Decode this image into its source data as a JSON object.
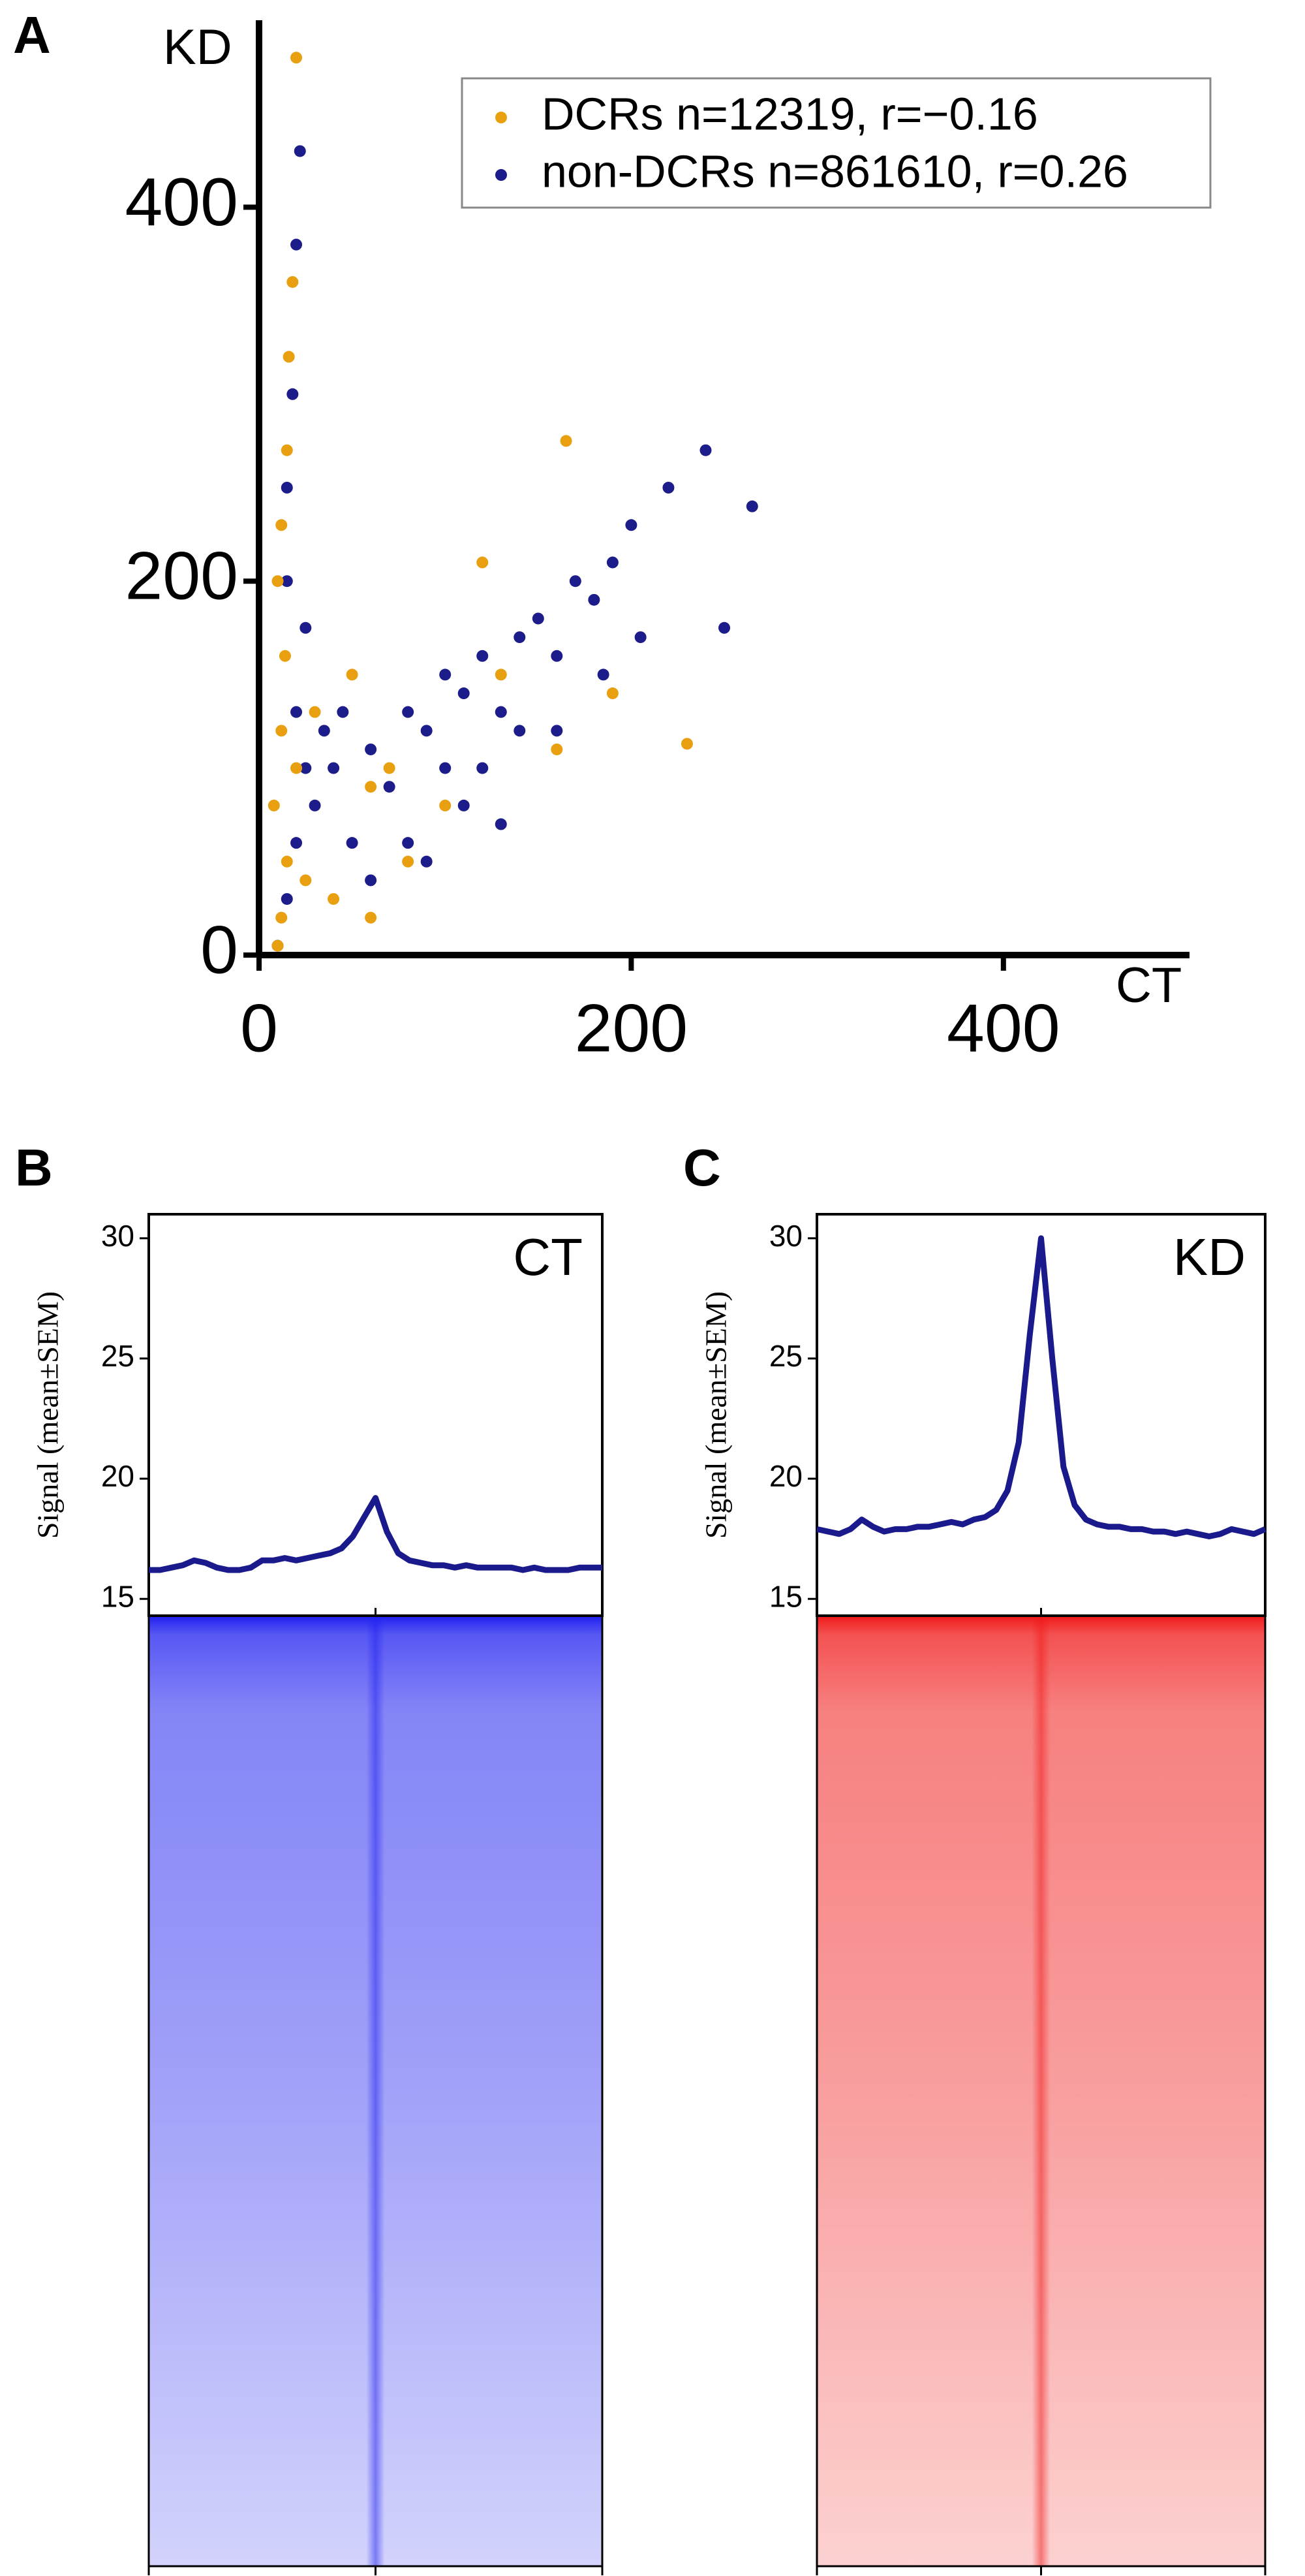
{
  "chart_data": [
    {
      "type": "scatter",
      "panel_label": "A",
      "x_label": "CT",
      "y_label": "KD",
      "xlim": [
        0,
        500
      ],
      "ylim": [
        0,
        500
      ],
      "xticks": [
        0,
        200,
        400
      ],
      "yticks": [
        0,
        200,
        400
      ],
      "legend": "upper right",
      "series": [
        {
          "name": "DCRs n=12319, r=−0.16",
          "color": "#e8a010",
          "x": [
            10,
            12,
            15,
            8,
            12,
            14,
            10,
            12,
            15,
            16,
            18,
            20,
            20,
            25,
            40,
            60,
            80,
            100,
            60,
            130,
            165,
            230,
            190,
            160,
            120,
            30,
            50,
            70
          ],
          "values": [
            5,
            20,
            50,
            80,
            120,
            160,
            200,
            230,
            270,
            320,
            360,
            480,
            100,
            40,
            30,
            20,
            50,
            80,
            90,
            150,
            275,
            113,
            140,
            110,
            210,
            130,
            150,
            100
          ]
        },
        {
          "name": "non-DCRs n=861610, r=0.26",
          "color": "#1c1c8a",
          "x": [
            10,
            15,
            20,
            25,
            15,
            18,
            20,
            22,
            15,
            30,
            40,
            50,
            60,
            70,
            80,
            90,
            100,
            110,
            120,
            130,
            140,
            150,
            160,
            170,
            180,
            190,
            200,
            220,
            240,
            265,
            250,
            100,
            120,
            60,
            80,
            140,
            110,
            90,
            130,
            160,
            185,
            205,
            35,
            45,
            20,
            25
          ],
          "values": [
            5,
            30,
            60,
            100,
            200,
            300,
            380,
            430,
            250,
            80,
            100,
            60,
            110,
            90,
            130,
            120,
            150,
            140,
            160,
            130,
            170,
            180,
            160,
            200,
            190,
            210,
            230,
            250,
            270,
            240,
            175,
            100,
            100,
            40,
            60,
            120,
            80,
            50,
            70,
            120,
            150,
            170,
            120,
            130,
            130,
            175
          ]
        }
      ]
    },
    {
      "type": "line",
      "panel_label": "B",
      "y_label": "Signal (mean±SEM)",
      "label": "CT",
      "ylim": [
        14.3,
        31
      ],
      "yticks": [
        15,
        20,
        25,
        30
      ],
      "color": "#1a1a8c",
      "heatmap_color": "#2020f0",
      "values": [
        16.2,
        16.2,
        16.3,
        16.4,
        16.6,
        16.5,
        16.3,
        16.2,
        16.2,
        16.3,
        16.6,
        16.6,
        16.7,
        16.6,
        16.7,
        16.8,
        16.9,
        17.1,
        17.6,
        18.4,
        19.2,
        17.8,
        16.9,
        16.6,
        16.5,
        16.4,
        16.4,
        16.3,
        16.4,
        16.3,
        16.3,
        16.3,
        16.3,
        16.2,
        16.3,
        16.2,
        16.2,
        16.2,
        16.3,
        16.3,
        16.3
      ]
    },
    {
      "type": "line",
      "panel_label": "C",
      "y_label": "Signal (mean±SEM)",
      "label": "KD",
      "ylim": [
        14.3,
        31
      ],
      "yticks": [
        15,
        20,
        25,
        30
      ],
      "color": "#1a1a8c",
      "heatmap_color": "#f01818",
      "values": [
        17.9,
        17.8,
        17.7,
        17.9,
        18.3,
        18.0,
        17.8,
        17.9,
        17.9,
        18.0,
        18.0,
        18.1,
        18.2,
        18.1,
        18.3,
        18.4,
        18.7,
        19.5,
        21.5,
        26,
        30.0,
        25,
        20.5,
        18.9,
        18.3,
        18.1,
        18.0,
        18.0,
        17.9,
        17.9,
        17.8,
        17.8,
        17.7,
        17.8,
        17.7,
        17.6,
        17.7,
        17.9,
        17.8,
        17.7,
        17.9
      ]
    }
  ]
}
